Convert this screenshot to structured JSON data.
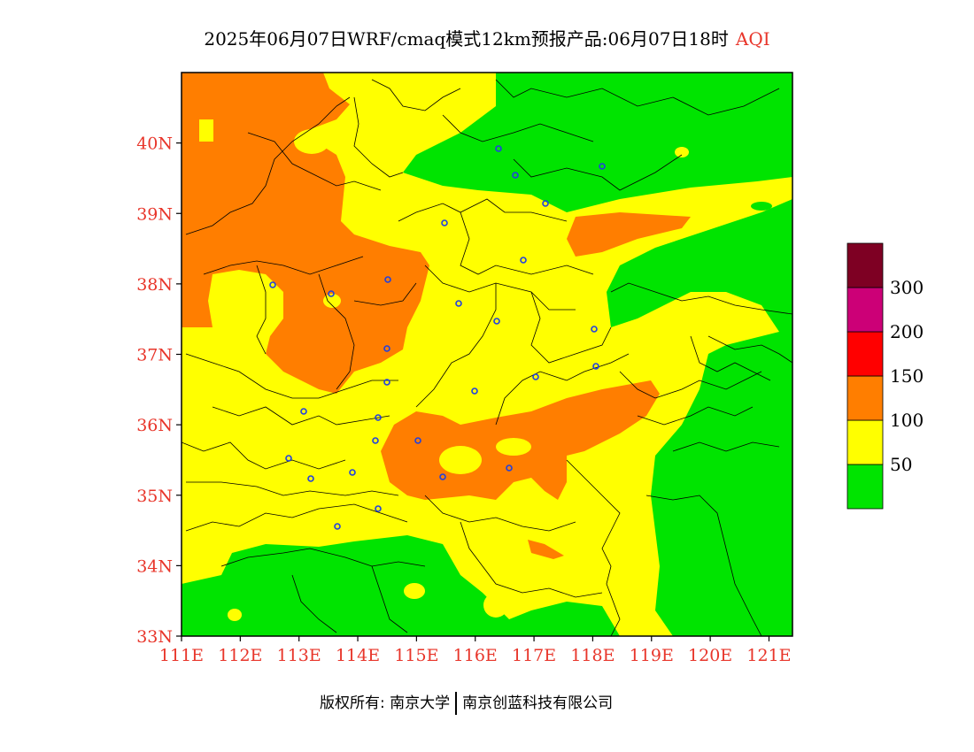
{
  "title": {
    "text": "2025年06月07日WRF/cmaq模式12km预报产品:06月07日18时",
    "tag": "AQI"
  },
  "map": {
    "lon_range": [
      111,
      121.4
    ],
    "lat_range": [
      33,
      41
    ],
    "lat_labels": [
      "33N",
      "34N",
      "35N",
      "36N",
      "37N",
      "38N",
      "39N",
      "40N"
    ],
    "lon_labels": [
      "111E",
      "112E",
      "113E",
      "114E",
      "115E",
      "116E",
      "117E",
      "118E",
      "119E",
      "120E",
      "121E"
    ],
    "label_color": "#e8352a"
  },
  "legend": {
    "levels": [
      {
        "label": "50",
        "color": "#00e400"
      },
      {
        "label": "100",
        "color": "#ffff00"
      },
      {
        "label": "150",
        "color": "#ff7e00"
      },
      {
        "label": "200",
        "color": "#ff0000"
      },
      {
        "label": "300",
        "color": "#cc0077"
      },
      {
        "label": "",
        "color": "#7e0023"
      }
    ]
  },
  "footer": {
    "left": "版权所有: 南京大学",
    "right": "南京创蓝科技有限公司"
  },
  "colors": {
    "good": "#00e400",
    "moderate": "#ffff00",
    "unhealthy_sensitive": "#ff7e00",
    "marker": "#2040e0"
  }
}
